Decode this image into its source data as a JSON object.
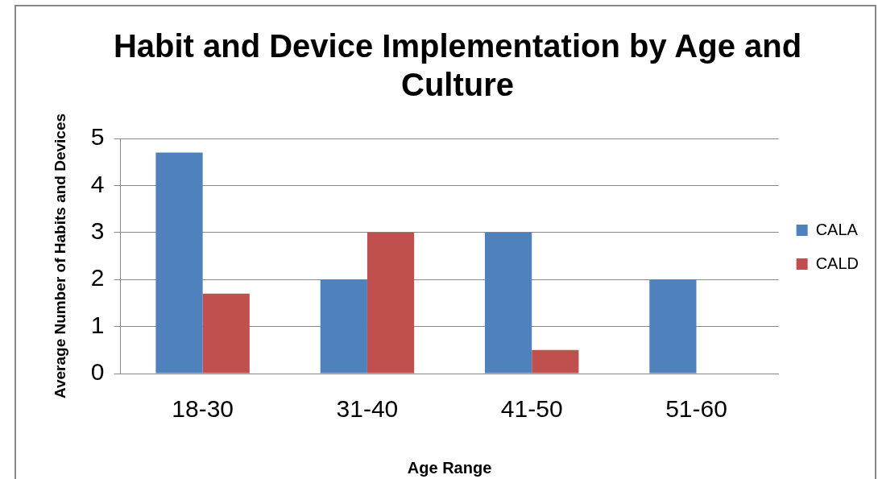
{
  "chart_data": {
    "type": "bar",
    "title": "Habit and Device Implementation by Age and Culture",
    "xlabel": "Age Range",
    "ylabel": "Average Number of Habits and Devices",
    "categories": [
      "18-30",
      "31-40",
      "41-50",
      "51-60"
    ],
    "series": [
      {
        "name": "CALA",
        "color": "#4f81bd",
        "values": [
          4.7,
          2,
          3,
          2
        ]
      },
      {
        "name": "CALD",
        "color": "#c0504d",
        "values": [
          1.7,
          3,
          0.5,
          0
        ]
      }
    ],
    "ylim": [
      0,
      5
    ],
    "yticks": [
      0,
      1,
      2,
      3,
      4,
      5
    ],
    "grid": "y",
    "legend": "right"
  }
}
